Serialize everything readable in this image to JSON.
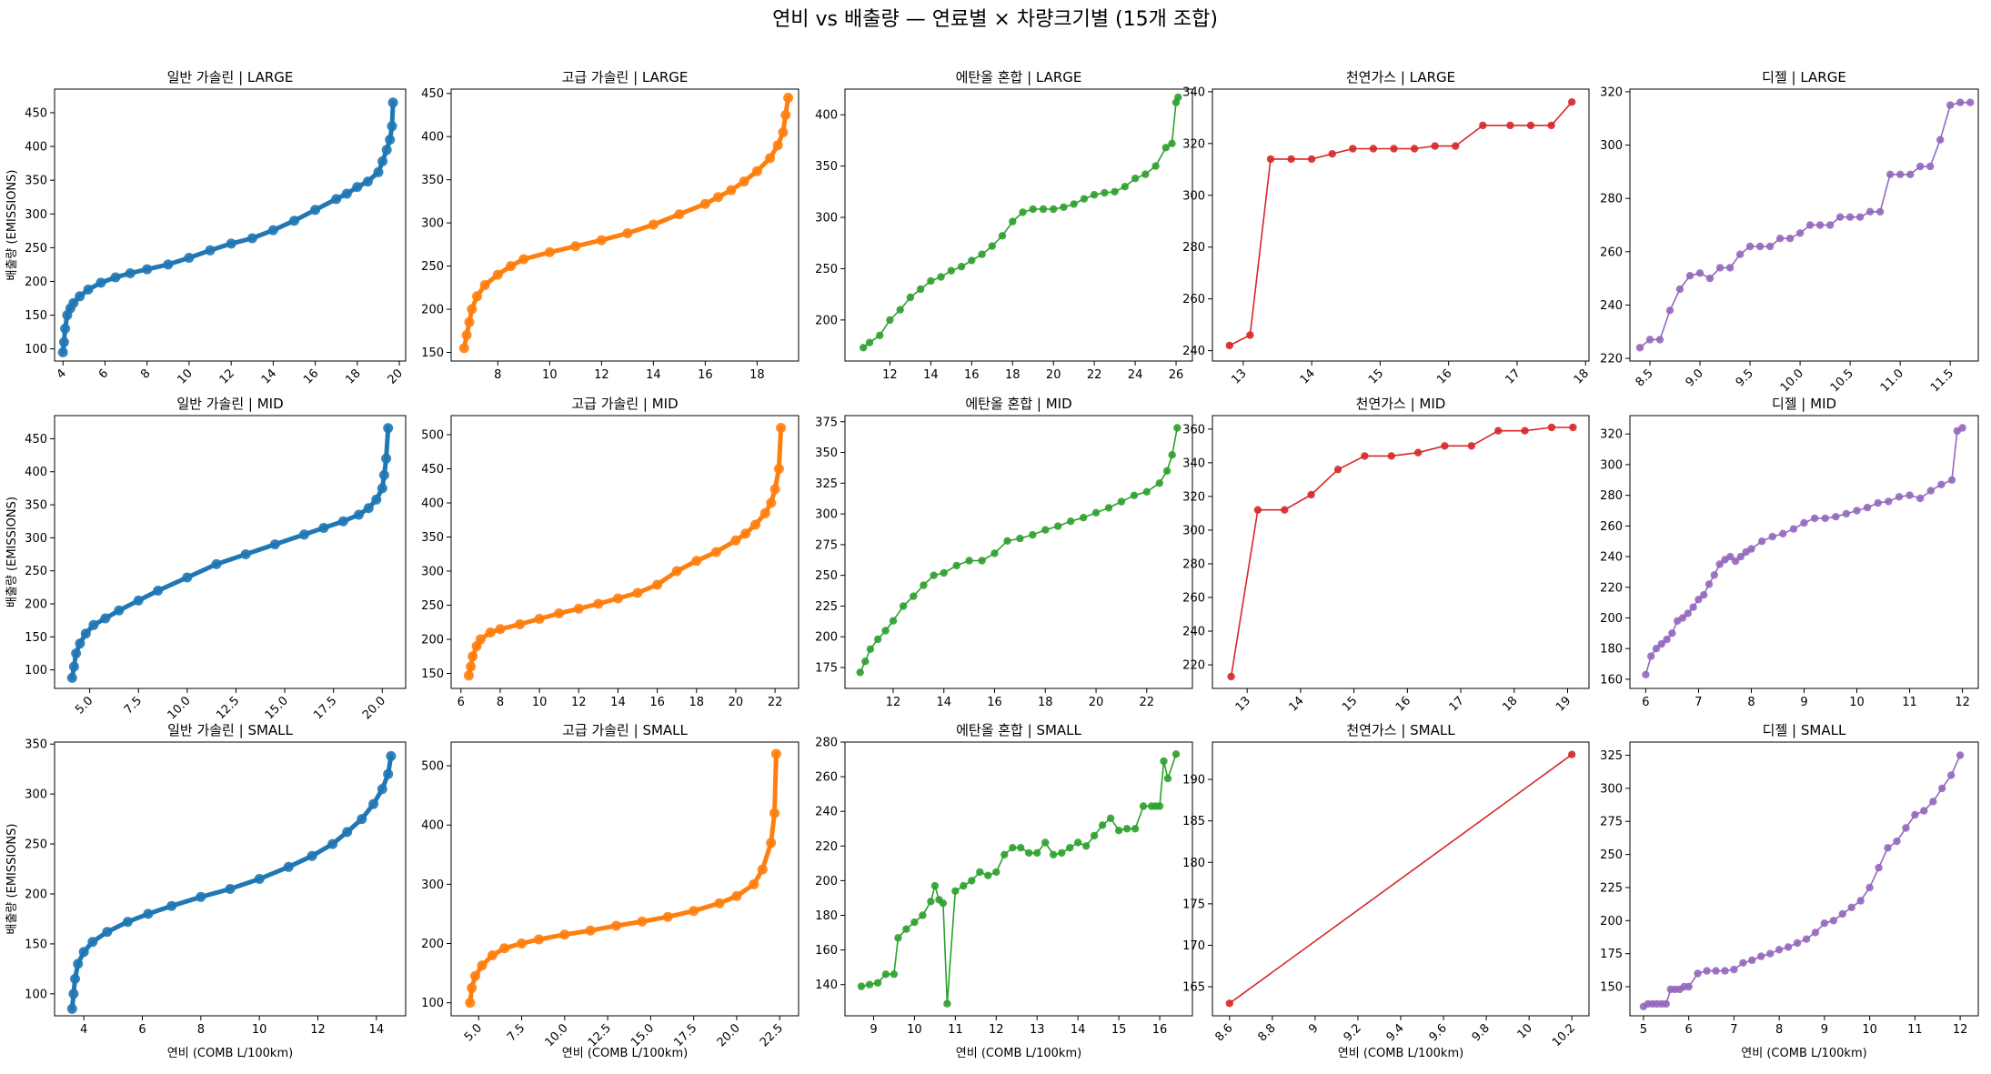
{
  "figure": {
    "suptitle": "연비 vs 배출량 — 연료별 × 차량크기별 (15개 조합)"
  },
  "chart_data": [
    {
      "type": "line",
      "title": "일반 가솔린 | LARGE",
      "color": "#1f77b4",
      "ylabel": "배출량 (EMISSIONS)",
      "xlabel": "",
      "xlim": [
        3.6,
        20.3
      ],
      "ylim": [
        82,
        485
      ],
      "xticks": [
        4,
        6,
        8,
        10,
        12,
        14,
        16,
        18,
        20
      ],
      "yticks": [
        100,
        150,
        200,
        250,
        300,
        350,
        400,
        450
      ],
      "rot": true,
      "dense": true,
      "x": [
        4.0,
        4.05,
        4.1,
        4.2,
        4.35,
        4.5,
        4.8,
        5.2,
        5.8,
        6.5,
        7.2,
        8.0,
        9.0,
        10.0,
        11.0,
        12.0,
        13.0,
        14.0,
        15.0,
        16.0,
        17.0,
        17.5,
        18.0,
        18.5,
        19.0,
        19.2,
        19.4,
        19.55,
        19.65,
        19.7
      ],
      "y": [
        95,
        110,
        130,
        150,
        160,
        168,
        178,
        188,
        198,
        206,
        212,
        218,
        225,
        235,
        246,
        256,
        264,
        276,
        290,
        306,
        322,
        330,
        340,
        348,
        362,
        378,
        395,
        410,
        430,
        465
      ]
    },
    {
      "type": "line",
      "title": "고급 가솔린 | LARGE",
      "color": "#ff7f0e",
      "ylabel": "",
      "xlabel": "",
      "xlim": [
        6.2,
        19.6
      ],
      "ylim": [
        140,
        455
      ],
      "xticks": [
        8,
        10,
        12,
        14,
        16,
        18
      ],
      "yticks": [
        150,
        200,
        250,
        300,
        350,
        400,
        450
      ],
      "rot": false,
      "dense": true,
      "x": [
        6.7,
        6.8,
        6.9,
        7.0,
        7.2,
        7.5,
        8.0,
        8.5,
        9.0,
        10.0,
        11.0,
        12.0,
        13.0,
        14.0,
        15.0,
        16.0,
        16.5,
        17.0,
        17.5,
        18.0,
        18.5,
        18.8,
        19.0,
        19.1,
        19.2
      ],
      "y": [
        155,
        170,
        185,
        200,
        215,
        228,
        240,
        250,
        258,
        266,
        273,
        280,
        288,
        298,
        310,
        322,
        330,
        338,
        348,
        360,
        375,
        390,
        405,
        425,
        445
      ]
    },
    {
      "type": "line",
      "title": "에탄올 혼합 | LARGE",
      "color": "#2ca02c",
      "ylabel": "",
      "xlabel": "",
      "xlim": [
        9.8,
        26.8
      ],
      "ylim": [
        160,
        425
      ],
      "xticks": [
        12,
        14,
        16,
        18,
        20,
        22,
        24,
        26
      ],
      "yticks": [
        200,
        250,
        300,
        350,
        400
      ],
      "rot": false,
      "dense": false,
      "x": [
        10.7,
        11.0,
        11.5,
        12.0,
        12.5,
        13.0,
        13.5,
        14.0,
        14.5,
        15.0,
        15.5,
        16.0,
        16.5,
        17.0,
        17.5,
        18.0,
        18.5,
        19.0,
        19.5,
        20.0,
        20.5,
        21.0,
        21.5,
        22.0,
        22.5,
        23.0,
        23.5,
        24.0,
        24.5,
        25.0,
        25.5,
        25.8,
        26.0,
        26.1
      ],
      "y": [
        173,
        178,
        185,
        200,
        210,
        222,
        230,
        238,
        242,
        248,
        252,
        258,
        264,
        272,
        282,
        296,
        305,
        308,
        308,
        308,
        310,
        313,
        318,
        322,
        324,
        325,
        330,
        338,
        342,
        350,
        368,
        372,
        412,
        417
      ]
    },
    {
      "type": "line",
      "title": "천연가스 | LARGE",
      "color": "#d62728",
      "ylabel": "",
      "xlabel": "",
      "xlim": [
        12.55,
        18.05
      ],
      "ylim": [
        236,
        341
      ],
      "xticks": [
        13,
        14,
        15,
        16,
        17,
        18
      ],
      "yticks": [
        240,
        260,
        280,
        300,
        320,
        340
      ],
      "rot": true,
      "dense": false,
      "x": [
        12.8,
        13.1,
        13.4,
        13.7,
        14.0,
        14.3,
        14.6,
        14.9,
        15.2,
        15.5,
        15.8,
        16.1,
        16.5,
        16.9,
        17.2,
        17.5,
        17.8
      ],
      "y": [
        242,
        246,
        314,
        314,
        314,
        316,
        318,
        318,
        318,
        318,
        319,
        319,
        327,
        327,
        327,
        327,
        336
      ]
    },
    {
      "type": "line",
      "title": "디젤 | LARGE",
      "color": "#9467bd",
      "ylabel": "",
      "xlabel": "",
      "xlim": [
        8.3,
        11.78
      ],
      "ylim": [
        219,
        321
      ],
      "xticks": [
        8.5,
        9.0,
        9.5,
        10.0,
        10.5,
        11.0,
        11.5
      ],
      "yticks": [
        220,
        240,
        260,
        280,
        300,
        320
      ],
      "rot": true,
      "dense": false,
      "x": [
        8.4,
        8.5,
        8.6,
        8.7,
        8.8,
        8.9,
        9.0,
        9.1,
        9.2,
        9.3,
        9.4,
        9.5,
        9.6,
        9.7,
        9.8,
        9.9,
        10.0,
        10.1,
        10.2,
        10.3,
        10.4,
        10.5,
        10.6,
        10.7,
        10.8,
        10.9,
        11.0,
        11.1,
        11.2,
        11.3,
        11.4,
        11.5,
        11.6,
        11.7
      ],
      "y": [
        224,
        227,
        227,
        238,
        246,
        251,
        252,
        250,
        254,
        254,
        259,
        262,
        262,
        262,
        265,
        265,
        267,
        270,
        270,
        270,
        273,
        273,
        273,
        275,
        275,
        289,
        289,
        289,
        292,
        292,
        302,
        315,
        316,
        316
      ]
    },
    {
      "type": "line",
      "title": "일반 가솔린 | MID",
      "color": "#1f77b4",
      "ylabel": "배출량 (EMISSIONS)",
      "xlabel": "",
      "xlim": [
        3.2,
        21.2
      ],
      "ylim": [
        72,
        485
      ],
      "xticks": [
        5.0,
        7.5,
        10.0,
        12.5,
        15.0,
        17.5,
        20.0
      ],
      "yticks": [
        100,
        150,
        200,
        250,
        300,
        350,
        400,
        450
      ],
      "rot": true,
      "dense": true,
      "x": [
        4.1,
        4.2,
        4.3,
        4.5,
        4.8,
        5.2,
        5.8,
        6.5,
        7.5,
        8.5,
        10.0,
        11.5,
        13.0,
        14.5,
        16.0,
        17.0,
        18.0,
        18.8,
        19.3,
        19.7,
        20.0,
        20.1,
        20.2,
        20.3
      ],
      "y": [
        88,
        105,
        125,
        140,
        155,
        168,
        178,
        190,
        205,
        220,
        240,
        260,
        275,
        290,
        305,
        315,
        325,
        335,
        345,
        358,
        375,
        395,
        420,
        466
      ]
    },
    {
      "type": "line",
      "title": "고급 가솔린 | MID",
      "color": "#ff7f0e",
      "ylabel": "",
      "xlabel": "",
      "xlim": [
        5.5,
        23.2
      ],
      "ylim": [
        128,
        528
      ],
      "xticks": [
        6,
        8,
        10,
        12,
        14,
        16,
        18,
        20,
        22
      ],
      "yticks": [
        150,
        200,
        250,
        300,
        350,
        400,
        450,
        500
      ],
      "rot": false,
      "dense": true,
      "x": [
        6.4,
        6.5,
        6.6,
        6.8,
        7.0,
        7.5,
        8.0,
        9.0,
        10.0,
        11.0,
        12.0,
        13.0,
        14.0,
        15.0,
        16.0,
        17.0,
        18.0,
        19.0,
        20.0,
        20.5,
        21.0,
        21.5,
        21.8,
        22.0,
        22.2,
        22.3
      ],
      "y": [
        147,
        160,
        175,
        190,
        200,
        210,
        215,
        222,
        230,
        238,
        245,
        252,
        260,
        268,
        280,
        300,
        315,
        328,
        345,
        355,
        368,
        385,
        400,
        420,
        450,
        510
      ]
    },
    {
      "type": "line",
      "title": "에탄올 혼합 | MID",
      "color": "#2ca02c",
      "ylabel": "",
      "xlabel": "",
      "xlim": [
        10.1,
        23.8
      ],
      "ylim": [
        158,
        380
      ],
      "xticks": [
        12,
        14,
        16,
        18,
        20,
        22
      ],
      "yticks": [
        175,
        200,
        225,
        250,
        275,
        300,
        325,
        350,
        375
      ],
      "rot": false,
      "dense": false,
      "x": [
        10.7,
        10.9,
        11.1,
        11.4,
        11.7,
        12.0,
        12.4,
        12.8,
        13.2,
        13.6,
        14.0,
        14.5,
        15.0,
        15.5,
        16.0,
        16.5,
        17.0,
        17.5,
        18.0,
        18.5,
        19.0,
        19.5,
        20.0,
        20.5,
        21.0,
        21.5,
        22.0,
        22.5,
        22.8,
        23.0,
        23.2
      ],
      "y": [
        171,
        180,
        190,
        198,
        205,
        213,
        225,
        233,
        242,
        250,
        252,
        258,
        262,
        262,
        268,
        278,
        280,
        283,
        287,
        290,
        294,
        297,
        301,
        305,
        310,
        315,
        318,
        325,
        335,
        348,
        370
      ]
    },
    {
      "type": "line",
      "title": "천연가스 | MID",
      "color": "#d62728",
      "ylabel": "",
      "xlabel": "",
      "xlim": [
        12.35,
        19.4
      ],
      "ylim": [
        206,
        368
      ],
      "xticks": [
        13,
        14,
        15,
        16,
        17,
        18,
        19
      ],
      "yticks": [
        220,
        240,
        260,
        280,
        300,
        320,
        340,
        360
      ],
      "rot": true,
      "dense": false,
      "x": [
        12.7,
        13.2,
        13.7,
        14.2,
        14.7,
        15.2,
        15.7,
        16.2,
        16.7,
        17.2,
        17.7,
        18.2,
        18.7,
        19.1
      ],
      "y": [
        213,
        312,
        312,
        321,
        336,
        344,
        344,
        346,
        350,
        350,
        359,
        359,
        361,
        361
      ]
    },
    {
      "type": "line",
      "title": "디젤 | MID",
      "color": "#9467bd",
      "ylabel": "",
      "xlabel": "",
      "xlim": [
        5.7,
        12.3
      ],
      "ylim": [
        154,
        332
      ],
      "xticks": [
        6,
        7,
        8,
        9,
        10,
        11,
        12
      ],
      "yticks": [
        160,
        180,
        200,
        220,
        240,
        260,
        280,
        300,
        320
      ],
      "rot": false,
      "dense": false,
      "x": [
        6.0,
        6.1,
        6.2,
        6.3,
        6.4,
        6.5,
        6.6,
        6.7,
        6.8,
        6.9,
        7.0,
        7.1,
        7.2,
        7.3,
        7.4,
        7.5,
        7.6,
        7.7,
        7.8,
        7.9,
        8.0,
        8.2,
        8.4,
        8.6,
        8.8,
        9.0,
        9.2,
        9.4,
        9.6,
        9.8,
        10.0,
        10.2,
        10.4,
        10.6,
        10.8,
        11.0,
        11.2,
        11.4,
        11.6,
        11.8,
        11.9,
        12.0
      ],
      "y": [
        163,
        175,
        180,
        183,
        186,
        190,
        198,
        200,
        203,
        207,
        212,
        215,
        222,
        228,
        235,
        238,
        240,
        237,
        240,
        243,
        245,
        250,
        253,
        255,
        258,
        262,
        265,
        265,
        266,
        268,
        270,
        272,
        275,
        276,
        279,
        280,
        278,
        283,
        287,
        290,
        322,
        324
      ]
    },
    {
      "type": "line",
      "title": "일반 가솔린 | SMALL",
      "color": "#1f77b4",
      "ylabel": "배출량 (EMISSIONS)",
      "xlabel": "연비 (COMB L/100km)",
      "xlim": [
        3.0,
        15.0
      ],
      "ylim": [
        78,
        352
      ],
      "xticks": [
        4,
        6,
        8,
        10,
        12,
        14
      ],
      "yticks": [
        100,
        150,
        200,
        250,
        300,
        350
      ],
      "rot": false,
      "dense": true,
      "x": [
        3.6,
        3.65,
        3.7,
        3.8,
        4.0,
        4.3,
        4.8,
        5.5,
        6.2,
        7.0,
        8.0,
        9.0,
        10.0,
        11.0,
        11.8,
        12.5,
        13.0,
        13.5,
        13.9,
        14.2,
        14.4,
        14.5
      ],
      "y": [
        85,
        100,
        115,
        130,
        142,
        152,
        162,
        172,
        180,
        188,
        197,
        205,
        215,
        227,
        238,
        250,
        262,
        275,
        290,
        305,
        320,
        338
      ]
    },
    {
      "type": "line",
      "title": "고급 가솔린 | SMALL",
      "color": "#ff7f0e",
      "ylabel": "",
      "xlabel": "연비 (COMB L/100km)",
      "xlim": [
        3.4,
        23.6
      ],
      "ylim": [
        78,
        540
      ],
      "xticks": [
        5.0,
        7.5,
        10.0,
        12.5,
        15.0,
        17.5,
        20.0,
        22.5
      ],
      "yticks": [
        100,
        200,
        300,
        400,
        500
      ],
      "rot": true,
      "dense": true,
      "x": [
        4.5,
        4.6,
        4.8,
        5.2,
        5.8,
        6.5,
        7.5,
        8.5,
        10.0,
        11.5,
        13.0,
        14.5,
        16.0,
        17.5,
        19.0,
        20.0,
        21.0,
        21.5,
        22.0,
        22.2,
        22.3
      ],
      "y": [
        100,
        125,
        145,
        163,
        180,
        192,
        200,
        207,
        215,
        222,
        230,
        237,
        245,
        255,
        268,
        280,
        300,
        325,
        370,
        420,
        520
      ]
    },
    {
      "type": "line",
      "title": "에탄올 혼합 | SMALL",
      "color": "#2ca02c",
      "ylabel": "",
      "xlabel": "연비 (COMB L/100km)",
      "xlim": [
        8.3,
        16.8
      ],
      "ylim": [
        122,
        280
      ],
      "xticks": [
        9,
        10,
        11,
        12,
        13,
        14,
        15,
        16
      ],
      "yticks": [
        140,
        160,
        180,
        200,
        220,
        240,
        260,
        280
      ],
      "rot": false,
      "dense": false,
      "x": [
        8.7,
        8.9,
        9.1,
        9.3,
        9.5,
        9.6,
        9.8,
        10.0,
        10.2,
        10.4,
        10.5,
        10.6,
        10.7,
        10.8,
        11.0,
        11.2,
        11.4,
        11.6,
        11.8,
        12.0,
        12.2,
        12.4,
        12.6,
        12.8,
        13.0,
        13.2,
        13.4,
        13.6,
        13.8,
        14.0,
        14.2,
        14.4,
        14.6,
        14.8,
        15.0,
        15.2,
        15.4,
        15.6,
        15.8,
        15.9,
        16.0,
        16.1,
        16.2,
        16.4
      ],
      "y": [
        139,
        140,
        141,
        146,
        146,
        167,
        172,
        176,
        180,
        188,
        197,
        189,
        187,
        129,
        194,
        197,
        200,
        205,
        203,
        205,
        215,
        219,
        219,
        216,
        216,
        222,
        215,
        216,
        219,
        222,
        220,
        226,
        232,
        236,
        229,
        230,
        230,
        243,
        243,
        243,
        243,
        269,
        259,
        273
      ]
    },
    {
      "type": "line",
      "title": "천연가스 | SMALL",
      "color": "#d62728",
      "ylabel": "",
      "xlabel": "연비 (COMB L/100km)",
      "xlim": [
        8.52,
        10.28
      ],
      "ylim": [
        161.5,
        194.5
      ],
      "xticks": [
        8.6,
        8.8,
        9.0,
        9.2,
        9.4,
        9.6,
        9.8,
        10.0,
        10.2
      ],
      "yticks": [
        165,
        170,
        175,
        180,
        185,
        190
      ],
      "rot": true,
      "dense": false,
      "x": [
        8.6,
        10.2
      ],
      "y": [
        163,
        193
      ]
    },
    {
      "type": "line",
      "title": "디젤 | SMALL",
      "color": "#9467bd",
      "ylabel": "",
      "xlabel": "연비 (COMB L/100km)",
      "xlim": [
        4.7,
        12.4
      ],
      "ylim": [
        128,
        335
      ],
      "xticks": [
        5,
        6,
        7,
        8,
        9,
        10,
        11,
        12
      ],
      "yticks": [
        150,
        175,
        200,
        225,
        250,
        275,
        300,
        325
      ],
      "rot": false,
      "dense": false,
      "x": [
        5.0,
        5.1,
        5.2,
        5.3,
        5.4,
        5.5,
        5.6,
        5.7,
        5.8,
        5.9,
        6.0,
        6.2,
        6.4,
        6.6,
        6.8,
        7.0,
        7.2,
        7.4,
        7.6,
        7.8,
        8.0,
        8.2,
        8.4,
        8.6,
        8.8,
        9.0,
        9.2,
        9.4,
        9.6,
        9.8,
        10.0,
        10.2,
        10.4,
        10.6,
        10.8,
        11.0,
        11.2,
        11.4,
        11.6,
        11.8,
        12.0
      ],
      "y": [
        135,
        137,
        137,
        137,
        137,
        137,
        148,
        148,
        148,
        150,
        150,
        160,
        162,
        162,
        162,
        163,
        168,
        170,
        173,
        175,
        178,
        180,
        183,
        186,
        191,
        198,
        200,
        205,
        210,
        215,
        225,
        240,
        255,
        260,
        270,
        280,
        283,
        290,
        300,
        310,
        325
      ]
    }
  ]
}
